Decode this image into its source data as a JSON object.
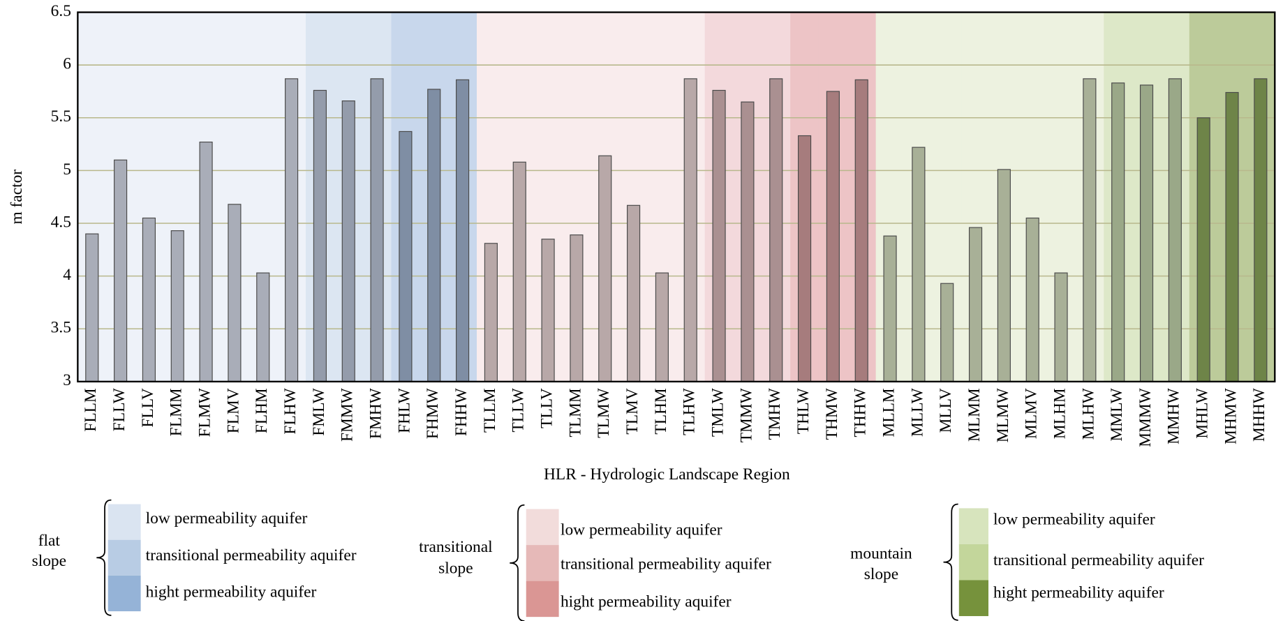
{
  "chart_data": {
    "type": "bar",
    "xlabel": "HLR - Hydrologic Landscape Region",
    "ylabel": "m factor",
    "categories": [
      "FLLM",
      "FLLW",
      "FLLV",
      "FLMM",
      "FLMW",
      "FLMV",
      "FLHM",
      "FLHW",
      "FMLW",
      "FMMW",
      "FMHW",
      "FHLW",
      "FHMW",
      "FHHW",
      "TLLM",
      "TLLW",
      "TLLV",
      "TLMM",
      "TLMW",
      "TLMV",
      "TLHM",
      "TLHW",
      "TMLW",
      "TMMW",
      "TMHW",
      "THLW",
      "THMW",
      "THHW",
      "MLLM",
      "MLLW",
      "MLLV",
      "MLMM",
      "MLMW",
      "MLMV",
      "MLHM",
      "MLHW",
      "MMLW",
      "MMMW",
      "MMHW",
      "MHLW",
      "MHMW",
      "MHHW"
    ],
    "values": [
      4.4,
      5.1,
      4.55,
      4.43,
      5.27,
      4.68,
      4.03,
      5.87,
      5.76,
      5.66,
      5.87,
      5.37,
      5.77,
      5.86,
      4.31,
      5.08,
      4.35,
      4.39,
      5.14,
      4.67,
      4.03,
      5.87,
      5.76,
      5.65,
      5.87,
      5.33,
      5.75,
      5.86,
      4.38,
      5.22,
      3.93,
      4.46,
      5.01,
      4.55,
      4.03,
      5.87,
      5.83,
      5.81,
      5.87,
      5.5,
      5.74,
      5.87
    ],
    "bar_colors": [
      "#a9adb8",
      "#a9adb8",
      "#a9adb8",
      "#a9adb8",
      "#a9adb8",
      "#a9adb8",
      "#a9adb8",
      "#a9adb8",
      "#949cab",
      "#949cab",
      "#949cab",
      "#7f8ea4",
      "#7f8ea4",
      "#7f8ea4",
      "#b8a8a8",
      "#b8a8a8",
      "#b8a8a8",
      "#b8a8a8",
      "#b8a8a8",
      "#b8a8a8",
      "#b8a8a8",
      "#b8a8a8",
      "#aa9091",
      "#aa9091",
      "#aa9091",
      "#a67c7d",
      "#a67c7d",
      "#a67c7d",
      "#a8b097",
      "#a8b097",
      "#a8b097",
      "#a8b097",
      "#a8b097",
      "#a8b097",
      "#a8b097",
      "#a8b097",
      "#9aa888",
      "#9aa888",
      "#9aa888",
      "#6e8448",
      "#6e8448",
      "#6e8448"
    ],
    "band_colors": [
      "#eef2f9",
      "#eef2f9",
      "#eef2f9",
      "#eef2f9",
      "#eef2f9",
      "#eef2f9",
      "#eef2f9",
      "#eef2f9",
      "#dce6f2",
      "#dce6f2",
      "#dce6f2",
      "#c8d7ec",
      "#c8d7ec",
      "#c8d7ec",
      "#f9eced",
      "#f9eced",
      "#f9eced",
      "#f9eced",
      "#f9eced",
      "#f9eced",
      "#f9eced",
      "#f9eced",
      "#f3d9dc",
      "#f3d9dc",
      "#f3d9dc",
      "#edc4c6",
      "#edc4c6",
      "#edc4c6",
      "#edf2e0",
      "#edf2e0",
      "#edf2e0",
      "#edf2e0",
      "#edf2e0",
      "#edf2e0",
      "#edf2e0",
      "#edf2e0",
      "#dde8c8",
      "#dde8c8",
      "#dde8c8",
      "#bccb9a",
      "#bccb9a",
      "#bccb9a"
    ],
    "ylim": [
      3,
      6.5
    ],
    "yticks": [
      3,
      3.5,
      4,
      4.5,
      5,
      5.5,
      6,
      6.5
    ],
    "grid": true,
    "grid_color": "#b8b88c",
    "legend": [
      {
        "title_lines": [
          "flat",
          "slope"
        ],
        "items": [
          {
            "label": "low permeability aquifer",
            "color": "#dae4f1"
          },
          {
            "label": "transitional permeability aquifer",
            "color": "#b8cce4"
          },
          {
            "label": "hight permeability aquifer",
            "color": "#95b3d7"
          }
        ]
      },
      {
        "title_lines": [
          "transitional",
          "slope"
        ],
        "items": [
          {
            "label": "low permeability aquifer",
            "color": "#f2dcdb"
          },
          {
            "label": "transitional permeability aquifer",
            "color": "#e6b9b8"
          },
          {
            "label": "hight permeability aquifer",
            "color": "#da9694"
          }
        ]
      },
      {
        "title_lines": [
          "mountain",
          "slope"
        ],
        "items": [
          {
            "label": "low permeability aquifer",
            "color": "#d7e4bd"
          },
          {
            "label": "transitional permeability aquifer",
            "color": "#c3d69b"
          },
          {
            "label": "hight permeability aquifer",
            "color": "#76923c"
          }
        ]
      }
    ]
  }
}
